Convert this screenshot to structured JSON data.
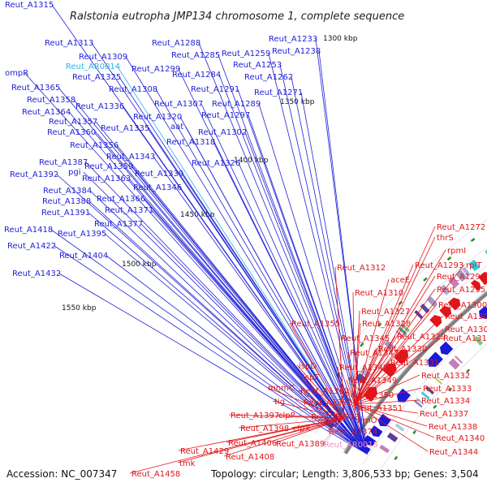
{
  "title": "Ralstonia eutropha JMP134 chromosome 1, complete sequence",
  "footer": {
    "accession": "Accession: NC_007347",
    "topology": "Topology: circular; Length: 3,806,533 bp; Genes: 3,504"
  },
  "colors": {
    "forward_label": "#1f1fd6",
    "reverse_label": "#e0161b",
    "rna_forward_label": "#27b3e6",
    "rna_reverse_label": "#ee8fc6",
    "backbone": "#808080"
  },
  "scale_ticks": [
    "1300 kbp",
    "1350 kbp",
    "1400 kbp",
    "1450 kbp",
    "1500 kbp",
    "1550 kbp"
  ],
  "forward_labels": [
    "Reut_A1315",
    "Reut_A1313",
    "Reut_A1288",
    "Reut_A1233",
    "Reut_A1309",
    "Reut_A1285",
    "Reut_A1259",
    "Reut_A1238",
    "Reut_AR0014",
    "Reut_A1299",
    "Reut_A1253",
    "Reut_A1325",
    "Reut_A1284",
    "Reut_A1262",
    "ompR",
    "Reut_A1365",
    "Reut_A1308",
    "Reut_A1291",
    "Reut_A1271",
    "Reut_A1358",
    "Reut_A1336",
    "Reut_A1307",
    "Reut_A1289",
    "Reut_A1364",
    "Reut_A1320",
    "Reut_A1297",
    "Reut_A1357",
    "Reut_A1335",
    "aat",
    "Reut_A1360",
    "Reut_A1302",
    "Reut_A1318",
    "Reut_A1356",
    "Reut_A1343",
    "Reut_A1387",
    "Reut_A1359",
    "Reut_A1326",
    "Reut_A1392",
    "pgi",
    "Reut_A1363",
    "Reut_A1339",
    "Reut_A1346",
    "Reut_A1384",
    "Reut_A1388",
    "Reut_A1366",
    "Reut_A1391",
    "Reut_A1371",
    "Reut_A1377",
    "Reut_A1418",
    "Reut_A1395",
    "Reut_A1422",
    "Reut_A1404",
    "Reut_A1432"
  ],
  "reverse_labels": [
    "Reut_A1272",
    "thrS",
    "rpmI",
    "Reut_A1293",
    "rplT",
    "Reut_A1312",
    "Reut_A1294",
    "aceE",
    "Reut_A1310",
    "Reut_A1295",
    "Reut_A1300",
    "Reut_A1327",
    "Reut_A1304",
    "Reut_A1328",
    "Reut_A1305",
    "Reut_A1355",
    "Reut_A1345",
    "Reut_A1329",
    "Reut_A1311",
    "Reut_A1347",
    "Reut_A1330",
    "ispD",
    "Reut_A1348",
    "Reut_A1331",
    "ispF",
    "Reut_A1349",
    "Reut_A1332",
    "mnmC",
    "Reut_A1369",
    "Reut_A1333",
    "Reut_A1350",
    "tig",
    "Reut_A1372",
    "Reut_A1334",
    "Reut_A1351",
    "Reut_A1397",
    "clpP",
    "Reut_A1373",
    "Reut_A1337",
    "Reut_A1398",
    "clpX",
    "Reut_A1374",
    "rimO",
    "Reut_A1338",
    "Reut_A1406",
    "Reut_A1389",
    "Reut_AR0015",
    "Reut_A1340",
    "Reut_A1429",
    "Reut_A1408",
    "Reut_A1344",
    "tmk",
    "Reut_A1458"
  ]
}
